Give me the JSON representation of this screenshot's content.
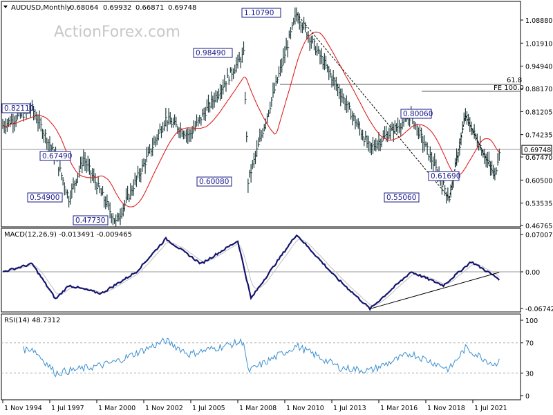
{
  "header": {
    "symbol": "AUDUSD,Monthly",
    "open": "0.68064",
    "high": "0.69932",
    "low": "0.66871",
    "close": "0.69748"
  },
  "watermark": "ActionForex.com",
  "price_axis_labels": [
    "1.08880",
    "1.01910",
    "0.94940",
    "0.88170",
    "0.81205",
    "0.74235",
    "0.67470",
    "0.60500",
    "0.53535",
    "0.46765"
  ],
  "current_price_tag": "0.69748",
  "fib_labels": {
    "fib_61_8": "61.8",
    "fe_100": "FE 100.0"
  },
  "callouts": [
    "1.10790",
    "0.98490",
    "0.82110",
    "0.67490",
    "0.54900",
    "0.47730",
    "0.60080",
    "0.80060",
    "0.61690",
    "0.55060"
  ],
  "macd": {
    "title": "MACD(12,26,9) -0.013491 -0.009465",
    "axis_labels": [
      "0.070071",
      "0.00",
      "-0.067423"
    ]
  },
  "rsi": {
    "title": "RSI(14) 48.7312",
    "axis_labels": [
      "100",
      "70",
      "30",
      "0"
    ]
  },
  "x_axis_labels": [
    "1 Nov 1994",
    "1 Jul 1997",
    "1 Mar 2000",
    "1 Nov 2002",
    "1 Jul 2005",
    "1 Mar 2008",
    "1 Nov 2010",
    "1 Jul 2013",
    "1 Mar 2016",
    "1 Nov 2018",
    "1 Jul 2021"
  ],
  "colors": {
    "price_bars": "#1f3b3b",
    "ma": "#e02020",
    "macd": "#14146e",
    "signal": "#c0c0c0",
    "rsi": "#3a8fd0",
    "callout": "#1a1a8a"
  },
  "chart_data": [
    {
      "type": "bar",
      "title": "AUDUSD,Monthly",
      "subtitle": "0.68064 0.69932 0.66871 0.69748",
      "ylim": [
        0.45,
        1.12
      ],
      "series": [
        {
          "values_monthly_close_pivots": [
            {
              "date": "1994-11",
              "value": 0.77
            },
            {
              "date": "1996-07",
              "value": 0.821
            },
            {
              "date": "1997-11",
              "value": 0.675
            },
            {
              "date": "1998-08",
              "value": 0.549
            },
            {
              "date": "1999-06",
              "value": 0.67
            },
            {
              "date": "2001-04",
              "value": 0.477
            },
            {
              "date": "2004-02",
              "value": 0.79
            },
            {
              "date": "2005-06",
              "value": 0.74
            },
            {
              "date": "2008-07",
              "value": 0.985
            },
            {
              "date": "2008-10",
              "value": 0.6008
            },
            {
              "date": "2011-07",
              "value": 1.1079
            },
            {
              "date": "2013-09",
              "value": 0.9
            },
            {
              "date": "2015-09",
              "value": 0.7
            },
            {
              "date": "2018-01",
              "value": 0.8006
            },
            {
              "date": "2020-03",
              "value": 0.5506
            },
            {
              "date": "2021-02",
              "value": 0.8
            },
            {
              "date": "2022-10",
              "value": 0.6169
            },
            {
              "date": "2023-01",
              "value": 0.6975
            }
          ]
        }
      ],
      "annotations": [
        "1.10790",
        "0.98490",
        "0.82110",
        "0.67490",
        "0.54900",
        "0.47730",
        "0.60080",
        "0.80060",
        "0.61690",
        "0.55060",
        "61.8",
        "FE 100.0"
      ]
    },
    {
      "type": "line",
      "title": "MACD(12,26,9) -0.013491 -0.009465",
      "ylim": [
        -0.067423,
        0.070071
      ],
      "series": [
        {
          "values": [
            {
              "date": "1994-11",
              "value": 0.0
            },
            {
              "date": "1996-07",
              "value": 0.015
            },
            {
              "date": "1997-11",
              "value": -0.05
            },
            {
              "date": "1998-08",
              "value": -0.025
            },
            {
              "date": "2000-06",
              "value": -0.04
            },
            {
              "date": "2002-06",
              "value": 0.0
            },
            {
              "date": "2004-02",
              "value": 0.062
            },
            {
              "date": "2006-02",
              "value": 0.015
            },
            {
              "date": "2008-03",
              "value": 0.058
            },
            {
              "date": "2008-12",
              "value": -0.049
            },
            {
              "date": "2011-07",
              "value": 0.07
            },
            {
              "date": "2013-09",
              "value": -0.008
            },
            {
              "date": "2015-09",
              "value": -0.068
            },
            {
              "date": "2018-01",
              "value": 0.0
            },
            {
              "date": "2019-11",
              "value": -0.025
            },
            {
              "date": "2021-06",
              "value": 0.019
            },
            {
              "date": "2023-01",
              "value": -0.013491
            }
          ]
        }
      ]
    },
    {
      "type": "line",
      "title": "RSI(14) 48.7312",
      "ylim": [
        0,
        100
      ],
      "series": [
        {
          "values": [
            {
              "date": "1994-11",
              "value": 55
            },
            {
              "date": "1996-07",
              "value": 63
            },
            {
              "date": "1997-11",
              "value": 30
            },
            {
              "date": "2000-06",
              "value": 40
            },
            {
              "date": "2001-04",
              "value": 45
            },
            {
              "date": "2004-02",
              "value": 73
            },
            {
              "date": "2005-06",
              "value": 55
            },
            {
              "date": "2008-07",
              "value": 72
            },
            {
              "date": "2008-10",
              "value": 32
            },
            {
              "date": "2011-07",
              "value": 66
            },
            {
              "date": "2014-01",
              "value": 37
            },
            {
              "date": "2015-09",
              "value": 33
            },
            {
              "date": "2018-01",
              "value": 56
            },
            {
              "date": "2020-03",
              "value": 35
            },
            {
              "date": "2021-02",
              "value": 63
            },
            {
              "date": "2022-10",
              "value": 41
            },
            {
              "date": "2023-01",
              "value": 48.7312
            }
          ]
        }
      ]
    }
  ]
}
